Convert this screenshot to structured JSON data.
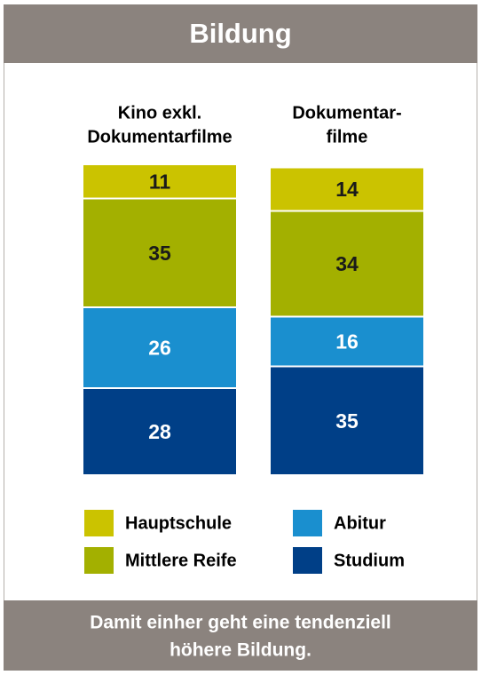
{
  "chart_data": {
    "type": "stacked_bar",
    "title": "Bildung",
    "categories": [
      [
        "Kino exkl.",
        "Dokumentarfilme"
      ],
      [
        "Dokumentar-",
        "filme"
      ]
    ],
    "series": [
      {
        "name": "Studium",
        "color": "#003f87",
        "values": [
          28,
          35
        ]
      },
      {
        "name": "Abitur",
        "color": "#1a8fcf",
        "values": [
          26,
          16
        ]
      },
      {
        "name": "Mittlere Reife",
        "color": "#a3b000",
        "values": [
          35,
          34
        ]
      },
      {
        "name": "Hauptschule",
        "color": "#cbc300",
        "values": [
          11,
          14
        ]
      }
    ],
    "note": [
      "Damit einher geht eine tendenziell",
      "höhere Bildung."
    ]
  }
}
